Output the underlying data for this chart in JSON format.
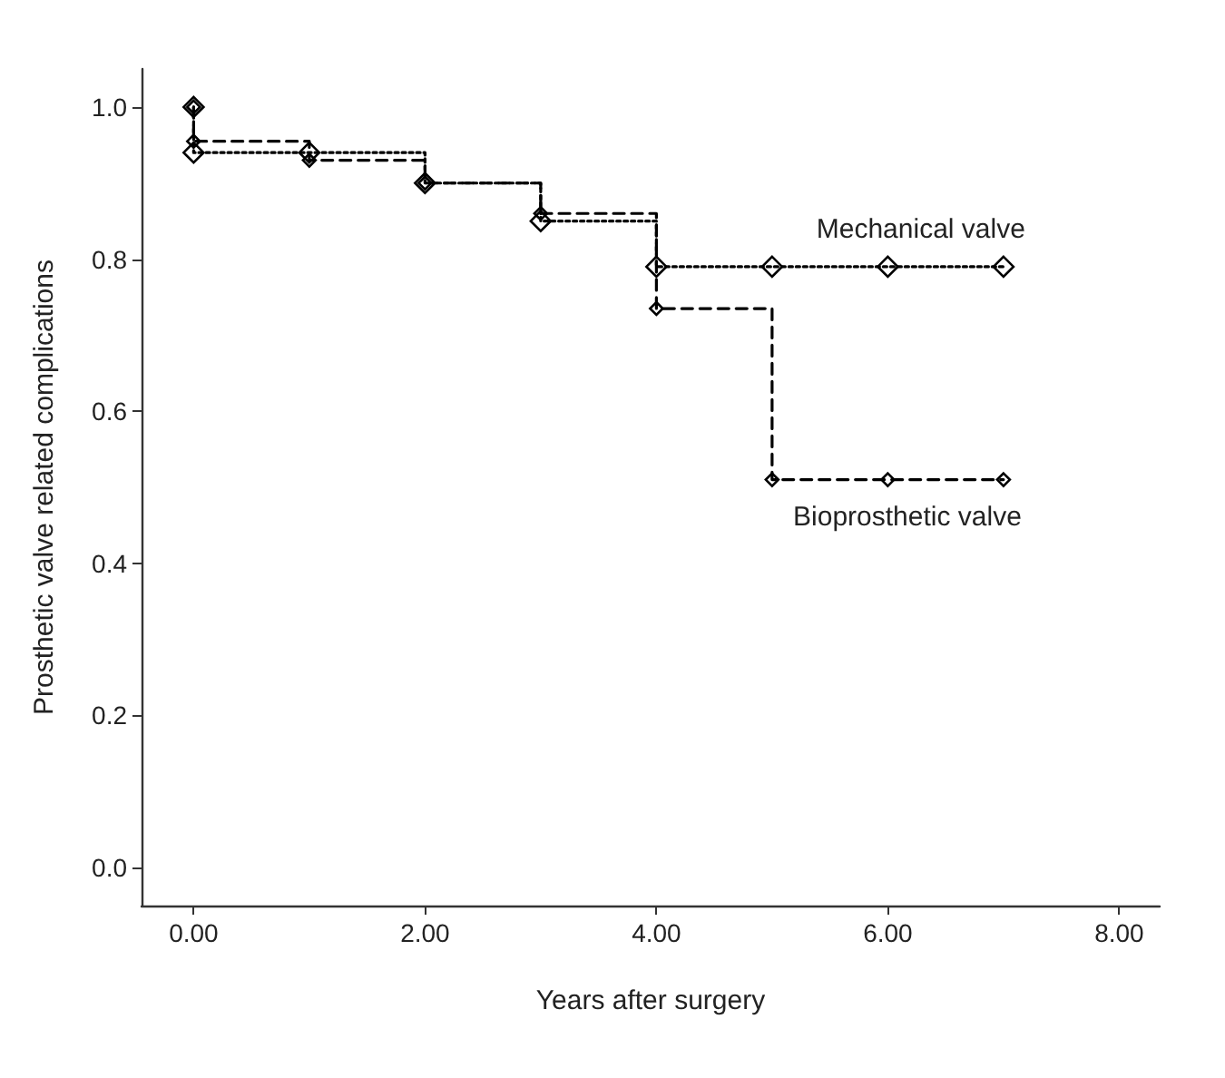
{
  "chart_data": {
    "type": "step",
    "xlabel": "Years after surgery",
    "ylabel": "Prosthetic valve related complications",
    "series": [
      {
        "name": "Mechanical valve",
        "color": "#000000",
        "line_style": "dotted",
        "x": [
          0,
          0,
          1,
          2,
          3,
          4,
          5,
          6,
          7
        ],
        "values": [
          1.0,
          0.94,
          0.94,
          0.9,
          0.85,
          0.79,
          0.79,
          0.79,
          0.79
        ]
      },
      {
        "name": "Bioprosthetic valve",
        "color": "#000000",
        "line_style": "dashed",
        "x": [
          0,
          0,
          1,
          2,
          3,
          4,
          5,
          6,
          7
        ],
        "values": [
          1.0,
          0.955,
          0.93,
          0.9,
          0.86,
          0.735,
          0.51,
          0.51,
          0.51
        ]
      }
    ],
    "xlim": [
      -0.45,
      8.35
    ],
    "xticks": [
      {
        "value": 0,
        "label": "0.00"
      },
      {
        "value": 2,
        "label": "2.00"
      },
      {
        "value": 4,
        "label": "4.00"
      },
      {
        "value": 6,
        "label": "6.00"
      },
      {
        "value": 8,
        "label": "8.00"
      }
    ],
    "ylim": [
      -0.05,
      1.05
    ],
    "yticks": [
      {
        "value": 0,
        "label": "0.0"
      },
      0.2,
      0.4,
      0.6,
      0.8,
      {
        "value": 1,
        "label": "1.0"
      }
    ],
    "marker": "diamond",
    "grid": false,
    "legend": false
  }
}
